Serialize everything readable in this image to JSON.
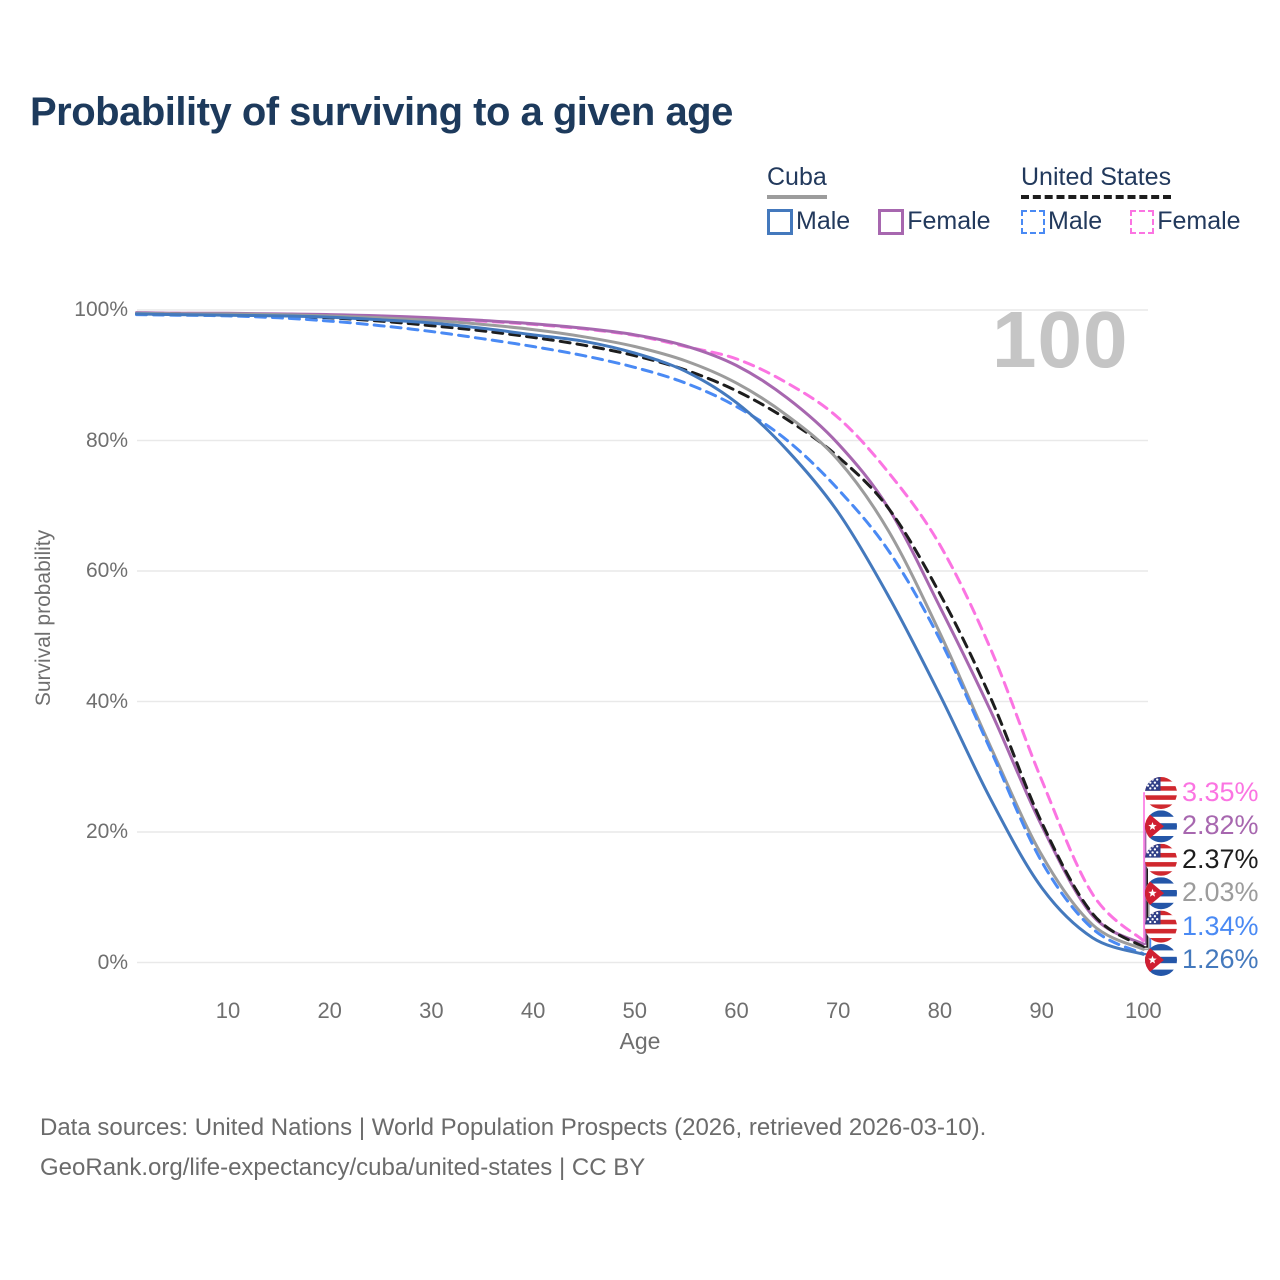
{
  "title": "Probability of surviving to a given age",
  "watermark": "100",
  "legend": {
    "groups": [
      {
        "country": "Cuba",
        "items": [
          {
            "label": "Male"
          },
          {
            "label": "Female"
          }
        ]
      },
      {
        "country": "United States",
        "items": [
          {
            "label": "Male"
          },
          {
            "label": "Female"
          }
        ]
      }
    ]
  },
  "chart_data": {
    "type": "line",
    "title": "Probability of surviving to a given age",
    "xlabel": "Age",
    "ylabel": "Survival probability",
    "xlim": [
      0,
      100
    ],
    "ylim": [
      0,
      100
    ],
    "grid": true,
    "legend_position": "top-right",
    "x_ticks": [
      10,
      20,
      30,
      40,
      50,
      60,
      70,
      80,
      90,
      100
    ],
    "y_ticks": [
      0,
      20,
      40,
      60,
      80,
      100
    ],
    "y_tick_labels": [
      "0%",
      "20%",
      "40%",
      "60%",
      "80%",
      "100%"
    ],
    "x": [
      1,
      5,
      10,
      15,
      20,
      25,
      30,
      35,
      40,
      45,
      50,
      55,
      60,
      65,
      70,
      75,
      80,
      85,
      90,
      95,
      100
    ],
    "series": [
      {
        "name": "United States Female",
        "country": "United States",
        "sex": "Female",
        "color": "#fb74e2",
        "dash": true,
        "end_label": "3.35%",
        "values": [
          99.5,
          99.5,
          99.4,
          99.3,
          99.2,
          99.0,
          98.7,
          98.3,
          97.8,
          97.1,
          96.1,
          94.4,
          92.5,
          88.8,
          83.5,
          75.0,
          64.0,
          48.0,
          28.0,
          10.5,
          3.35
        ]
      },
      {
        "name": "Cuba Female",
        "country": "Cuba",
        "sex": "Female",
        "color": "#a767af",
        "dash": false,
        "end_label": "2.82%",
        "values": [
          99.6,
          99.5,
          99.5,
          99.4,
          99.3,
          99.1,
          98.8,
          98.4,
          97.9,
          97.2,
          96.2,
          94.5,
          91.5,
          86.5,
          79.5,
          69.5,
          54.5,
          38.5,
          21.0,
          7.2,
          2.82
        ]
      },
      {
        "name": "United States",
        "country": "United States",
        "sex": "Total",
        "color": "#1d1d1d",
        "dash": true,
        "end_label": "2.37%",
        "values": [
          99.4,
          99.4,
          99.3,
          99.1,
          98.8,
          98.3,
          97.6,
          96.8,
          95.8,
          94.6,
          93.0,
          90.8,
          87.6,
          83.2,
          77.5,
          69.5,
          56.5,
          40.5,
          21.5,
          7.5,
          2.37
        ]
      },
      {
        "name": "Cuba",
        "country": "Cuba",
        "sex": "Total",
        "color": "#9c9c9c",
        "dash": false,
        "end_label": "2.03%",
        "values": [
          99.5,
          99.4,
          99.4,
          99.3,
          99.1,
          98.8,
          98.4,
          97.8,
          97.0,
          95.9,
          94.4,
          92.2,
          88.8,
          83.8,
          77.0,
          66.0,
          50.5,
          33.0,
          16.5,
          5.8,
          2.03
        ]
      },
      {
        "name": "United States Male",
        "country": "United States",
        "sex": "Male",
        "color": "#4a8af4",
        "dash": true,
        "end_label": "1.34%",
        "values": [
          99.3,
          99.2,
          99.1,
          98.8,
          98.3,
          97.6,
          96.7,
          95.6,
          94.4,
          93.0,
          91.2,
          88.8,
          85.2,
          80.0,
          72.5,
          63.0,
          49.5,
          32.5,
          15.5,
          5.2,
          1.34
        ]
      },
      {
        "name": "Cuba Male",
        "country": "Cuba",
        "sex": "Male",
        "color": "#4479bd",
        "dash": false,
        "end_label": "1.26%",
        "values": [
          99.4,
          99.3,
          99.2,
          99.1,
          98.9,
          98.5,
          98.0,
          97.2,
          96.2,
          95.2,
          93.4,
          90.6,
          85.8,
          78.5,
          69.0,
          56.0,
          41.0,
          25.0,
          11.5,
          3.8,
          1.26
        ]
      }
    ]
  },
  "footer": {
    "line1": "Data sources: United Nations | World Population Prospects (2026, retrieved 2026-03-10).",
    "line2": "GeoRank.org/life-expectancy/cuba/united-states | CC BY"
  }
}
